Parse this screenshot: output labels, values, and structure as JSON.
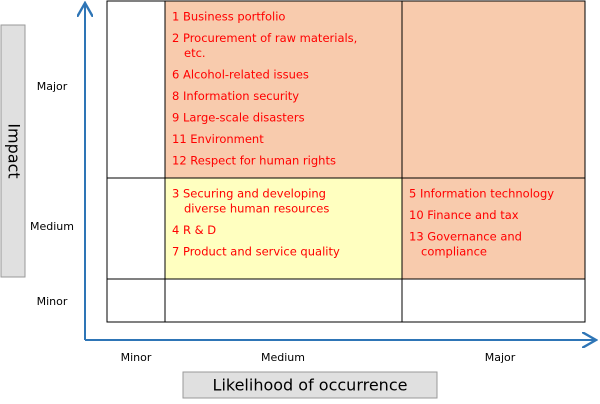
{
  "axes": {
    "y_title": "Impact",
    "x_title": "Likelihood of occurrence",
    "rows": [
      "Major",
      "Medium",
      "Minor"
    ],
    "columns": [
      "Minor",
      "Medium",
      "Major"
    ]
  },
  "matrix": {
    "rows": [
      {
        "cells": [
          {
            "color": "#ffffff",
            "items": []
          },
          {
            "color": "#f8cbad",
            "items": [
              [
                "1 Business portfolio"
              ],
              [
                "2 Procurement of raw materials,",
                "etc."
              ],
              [
                "6 Alcohol-related issues"
              ],
              [
                "8 Information security"
              ],
              [
                "9 Large-scale disasters"
              ],
              [
                "11 Environment"
              ],
              [
                "12 Respect for human rights"
              ]
            ]
          },
          {
            "color": "#f8cbad",
            "items": []
          }
        ]
      },
      {
        "cells": [
          {
            "color": "#ffffff",
            "items": []
          },
          {
            "color": "#ffffc0",
            "items": [
              [
                "3 Securing and developing",
                "diverse human resources"
              ],
              [
                "4 R & D"
              ],
              [
                "7 Product and service quality"
              ]
            ]
          },
          {
            "color": "#f8cbad",
            "items": [
              [
                "5 Information technology"
              ],
              [
                "10 Finance and tax"
              ],
              [
                "13 Governance and",
                "compliance"
              ]
            ]
          }
        ]
      },
      {
        "cells": [
          {
            "color": "#ffffff",
            "items": []
          },
          {
            "color": "#ffffff",
            "items": []
          },
          {
            "color": "#ffffff",
            "items": []
          }
        ]
      }
    ]
  }
}
